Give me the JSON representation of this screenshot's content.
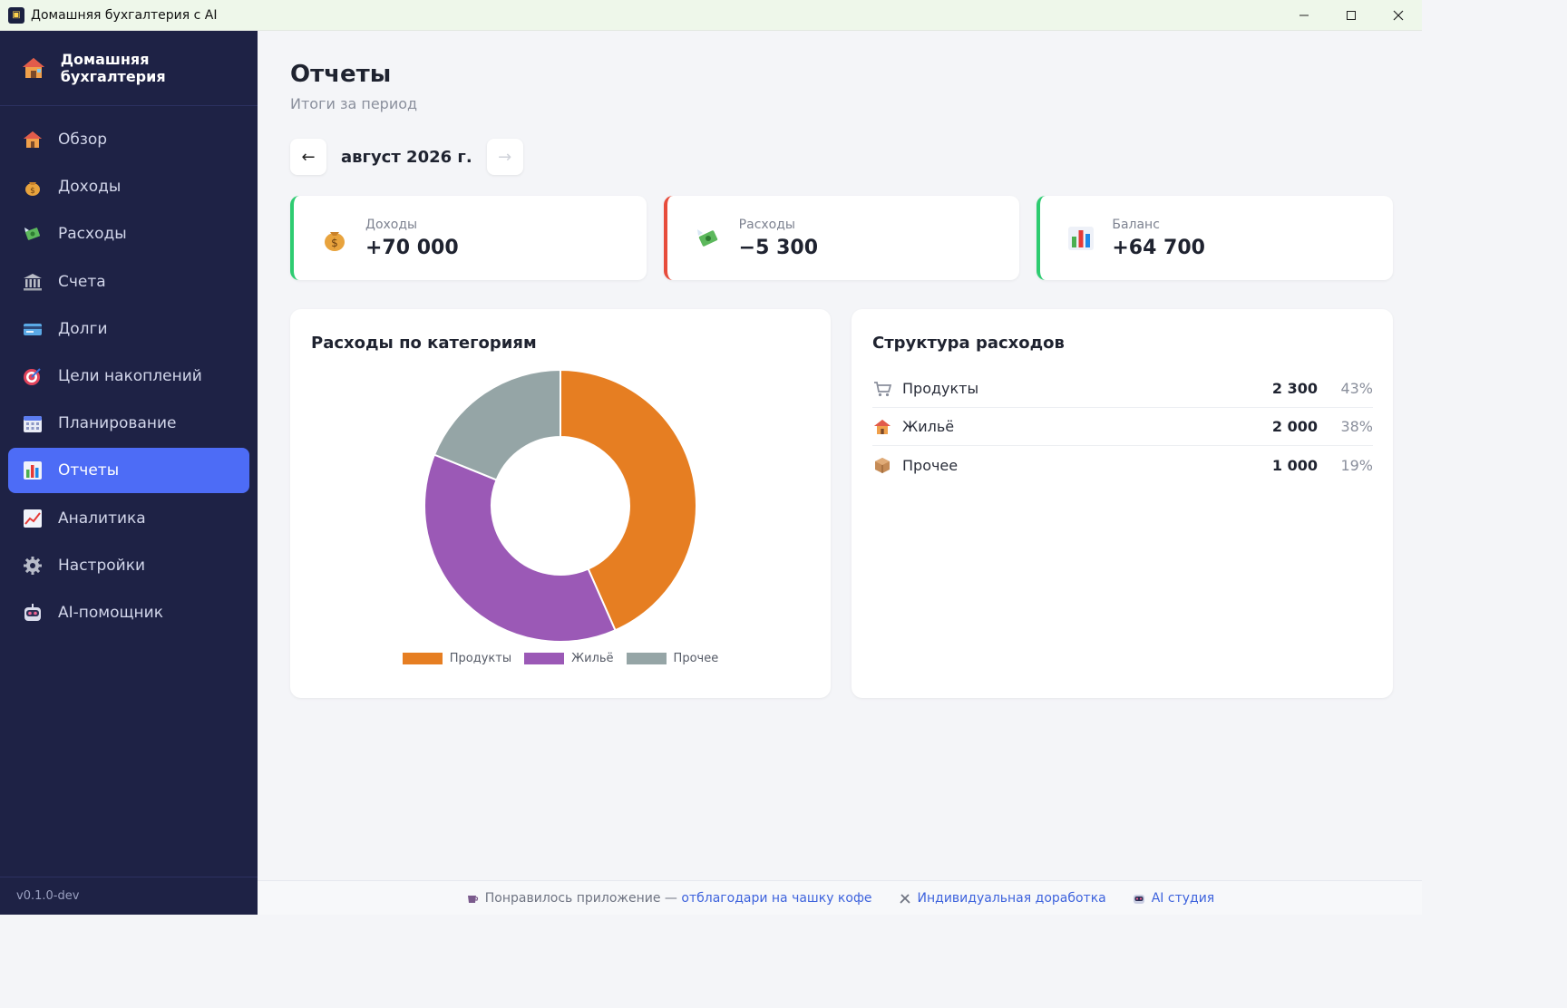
{
  "window": {
    "title": "Домашняя бухгалтерия с AI",
    "controls": {
      "minimize": "—",
      "maximize": "☐",
      "close": "✕"
    }
  },
  "sidebar": {
    "brand": "Домашняя бухгалтерия",
    "items": [
      {
        "label": "Обзор",
        "icon": "house-icon"
      },
      {
        "label": "Доходы",
        "icon": "money-bag-icon"
      },
      {
        "label": "Расходы",
        "icon": "flying-money-icon"
      },
      {
        "label": "Счета",
        "icon": "bank-icon"
      },
      {
        "label": "Долги",
        "icon": "credit-card-icon"
      },
      {
        "label": "Цели накоплений",
        "icon": "target-icon"
      },
      {
        "label": "Планирование",
        "icon": "calendar-icon"
      },
      {
        "label": "Отчеты",
        "icon": "bar-chart-icon",
        "active": true
      },
      {
        "label": "Аналитика",
        "icon": "trend-chart-icon"
      },
      {
        "label": "Настройки",
        "icon": "gear-icon"
      },
      {
        "label": "AI-помощник",
        "icon": "robot-icon"
      }
    ],
    "version": "v0.1.0-dev"
  },
  "page": {
    "title": "Отчеты",
    "subtitle": "Итоги за период"
  },
  "period": {
    "prev": "←",
    "next": "→",
    "label": "август 2026 г."
  },
  "stats": {
    "income": {
      "label": "Доходы",
      "value": "+70 000"
    },
    "expense": {
      "label": "Расходы",
      "value": "−5 300"
    },
    "balance": {
      "label": "Баланс",
      "value": "+64 700"
    }
  },
  "category_card": {
    "title": "Расходы по категориям"
  },
  "structure_card": {
    "title": "Структура расходов",
    "rows": [
      {
        "name": "Продукты",
        "amount": "2 300",
        "percent": "43%",
        "icon": "cart-icon"
      },
      {
        "name": "Жильё",
        "amount": "2 000",
        "percent": "38%",
        "icon": "house-icon"
      },
      {
        "name": "Прочее",
        "amount": "1 000",
        "percent": "19%",
        "icon": "package-icon"
      }
    ]
  },
  "chart_data": {
    "type": "pie",
    "categories": [
      "Продукты",
      "Жильё",
      "Прочее"
    ],
    "values": [
      2300,
      2000,
      1000
    ],
    "colors": [
      "#e67e22",
      "#9b59b6",
      "#95a5a6"
    ],
    "donut": true,
    "legend": "bottom"
  },
  "footer": {
    "prefix": "Понравилось приложение —",
    "coffee_link": "отблагодари на чашку кофе",
    "custom_link": "Индивидуальная доработка",
    "studio_link": "AI студия"
  }
}
